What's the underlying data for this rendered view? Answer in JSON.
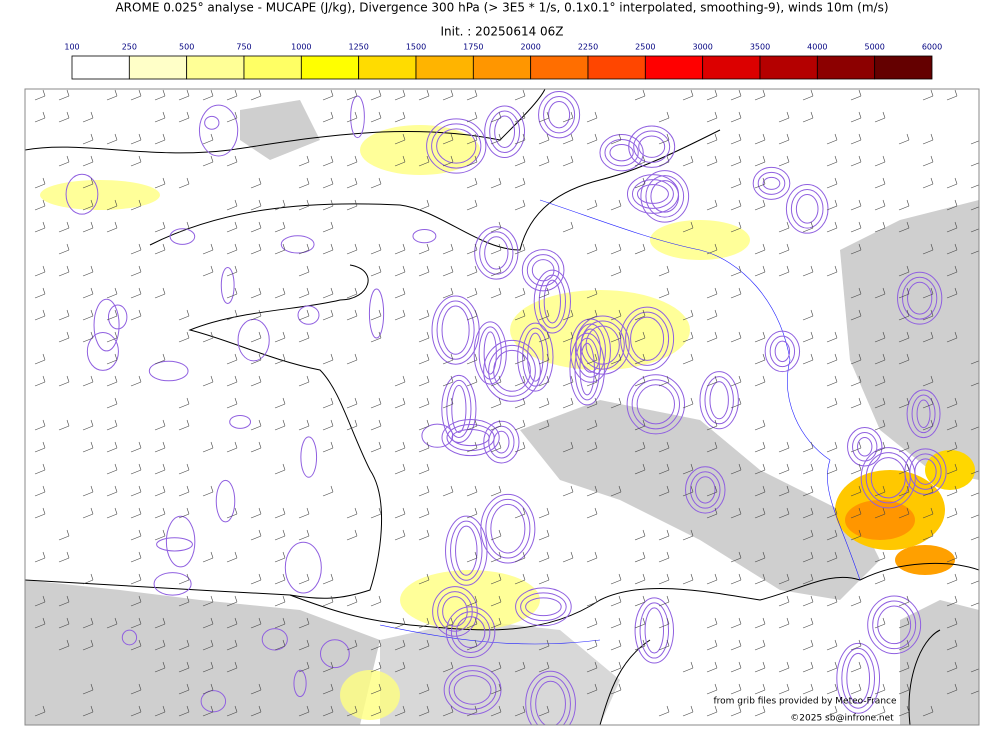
{
  "header": {
    "title": "AROME 0.025° analyse - MUCAPE (J/kg), Divergence 300 hPa (> 3E5 * 1/s, 0.1x0.1° interpolated, smoothing-9), winds 10m (m/s)",
    "init": "Init. : 20250614 06Z"
  },
  "colorbar": {
    "levels": [
      100,
      250,
      500,
      750,
      1000,
      1250,
      1500,
      1750,
      2000,
      2250,
      2500,
      3000,
      3500,
      4000,
      5000,
      6000
    ],
    "colors": [
      "#ffffff",
      "#ffffc8",
      "#ffff96",
      "#ffff64",
      "#ffff00",
      "#ffdc00",
      "#ffb400",
      "#ff9600",
      "#ff6e00",
      "#ff4600",
      "#ff0000",
      "#dc0000",
      "#b40000",
      "#8c0000",
      "#640000"
    ]
  },
  "credits": {
    "source": "from grib files provided by Meteo-France",
    "copyright": "©2025 sb@infrone.net"
  }
}
